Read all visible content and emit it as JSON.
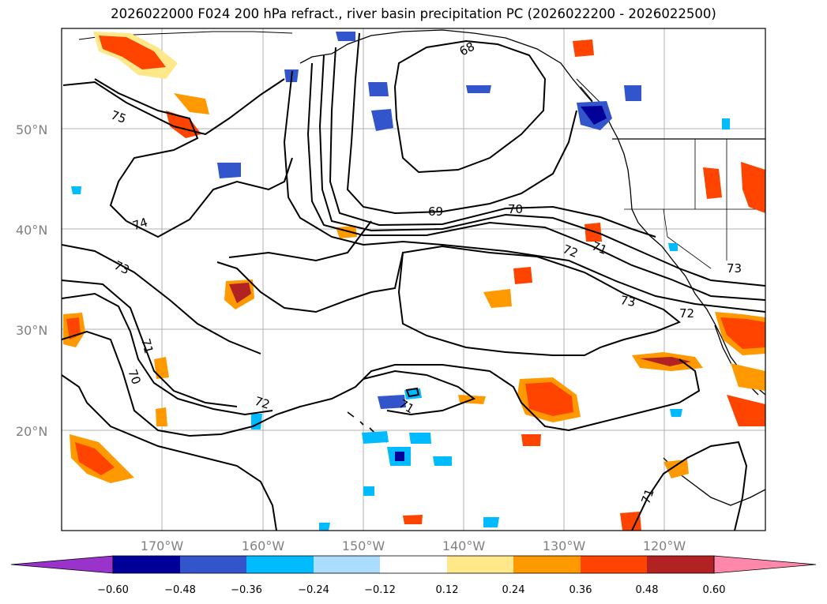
{
  "title": "2026022000 F024 200 hPa refract., river basin precipitation PC (2026022200 - 2026022500)",
  "lat_labels": [
    "20°N",
    "30°N",
    "40°N",
    "50°N"
  ],
  "lon_labels": [
    "170°W",
    "160°W",
    "150°W",
    "140°W",
    "130°W",
    "120°W"
  ],
  "contour_labels": [
    "68",
    "69",
    "70",
    "71",
    "72",
    "73",
    "74",
    "75",
    "71",
    "70",
    "72",
    "71",
    "73",
    "73",
    "71",
    "72"
  ],
  "colorbar": {
    "ticks": [
      "−0.60",
      "−0.48",
      "−0.36",
      "−0.24",
      "−0.12",
      "0.12",
      "0.24",
      "0.36",
      "0.48",
      "0.60"
    ],
    "colors": [
      "#9933cc",
      "#000099",
      "#3355cc",
      "#00bbff",
      "#aaddff",
      "#ffffff",
      "#ffe88a",
      "#ff9900",
      "#ff4400",
      "#b22222",
      "#ff88aa"
    ]
  },
  "fill_colors": {
    "positive_light": "#ffe88a",
    "positive_mid": "#ff9900",
    "positive_strong": "#ff4400",
    "positive_max": "#b22222",
    "positive_extreme": "#ff88aa",
    "negative_light": "#aaddff",
    "negative_mid": "#00bbff",
    "negative_strong": "#3355cc",
    "negative_max": "#000099"
  }
}
